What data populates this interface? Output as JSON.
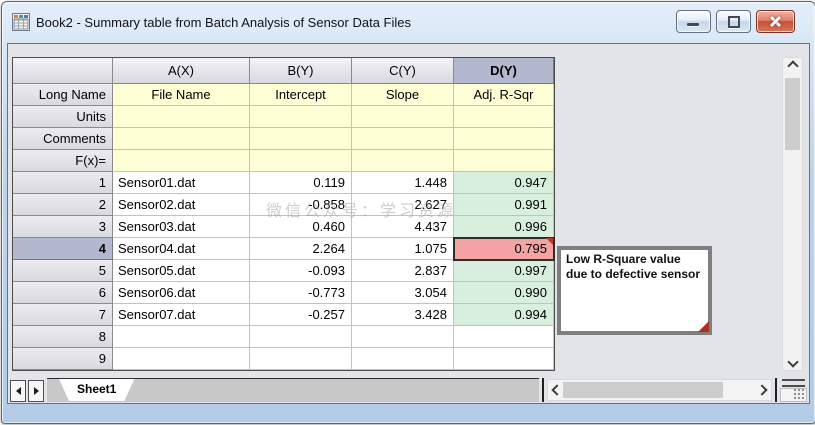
{
  "window": {
    "title": "Book2 - Summary table from Batch Analysis of Sensor Data Files",
    "controls": [
      "minimize",
      "restore-down",
      "close"
    ]
  },
  "table": {
    "column_headers": [
      "",
      "A(X)",
      "B(Y)",
      "C(Y)",
      "D(Y)"
    ],
    "selected_column": "D(Y)",
    "label_rows": [
      {
        "label": "Long Name",
        "values": [
          "File Name",
          "Intercept",
          "Slope",
          "Adj. R-Sqr"
        ]
      },
      {
        "label": "Units",
        "values": [
          "",
          "",
          "",
          ""
        ]
      },
      {
        "label": "Comments",
        "values": [
          "",
          "",
          "",
          ""
        ]
      },
      {
        "label": "F(x)=",
        "values": [
          "",
          "",
          "",
          ""
        ]
      }
    ],
    "data_rows": [
      {
        "row": "1",
        "file_name": "Sensor01.dat",
        "intercept": "0.119",
        "slope": "1.448",
        "adj_r_sqr": "0.947"
      },
      {
        "row": "2",
        "file_name": "Sensor02.dat",
        "intercept": "-0.858",
        "slope": "2.627",
        "adj_r_sqr": "0.991"
      },
      {
        "row": "3",
        "file_name": "Sensor03.dat",
        "intercept": "0.460",
        "slope": "4.437",
        "adj_r_sqr": "0.996"
      },
      {
        "row": "4",
        "file_name": "Sensor04.dat",
        "intercept": "2.264",
        "slope": "1.075",
        "adj_r_sqr": "0.795"
      },
      {
        "row": "5",
        "file_name": "Sensor05.dat",
        "intercept": "-0.093",
        "slope": "2.837",
        "adj_r_sqr": "0.997"
      },
      {
        "row": "6",
        "file_name": "Sensor06.dat",
        "intercept": "-0.773",
        "slope": "3.054",
        "adj_r_sqr": "0.990"
      },
      {
        "row": "7",
        "file_name": "Sensor07.dat",
        "intercept": "-0.257",
        "slope": "3.428",
        "adj_r_sqr": "0.994"
      },
      {
        "row": "8",
        "file_name": "",
        "intercept": "",
        "slope": "",
        "adj_r_sqr": ""
      },
      {
        "row": "9",
        "file_name": "",
        "intercept": "",
        "slope": "",
        "adj_r_sqr": ""
      }
    ],
    "highlighted_row": "4",
    "highlighted_cell": {
      "row": "4",
      "column": "D(Y)",
      "value": "0.795"
    }
  },
  "comment_tooltip": {
    "text": "Low R-Square value due to defective sensor"
  },
  "sheet_tabs": {
    "active_tab": "Sheet1"
  },
  "watermark": {
    "text": "微信公众号：学习资源"
  },
  "colors": {
    "selected_header_bg": "#b2b8ce",
    "label_row_bg": "#ffffd6",
    "r_sqr_good_bg": "#d7efdc",
    "r_sqr_low_bg": "#f4a3a3",
    "comment_indicator": "#c0392b",
    "close_button": "#cf5a3e"
  }
}
